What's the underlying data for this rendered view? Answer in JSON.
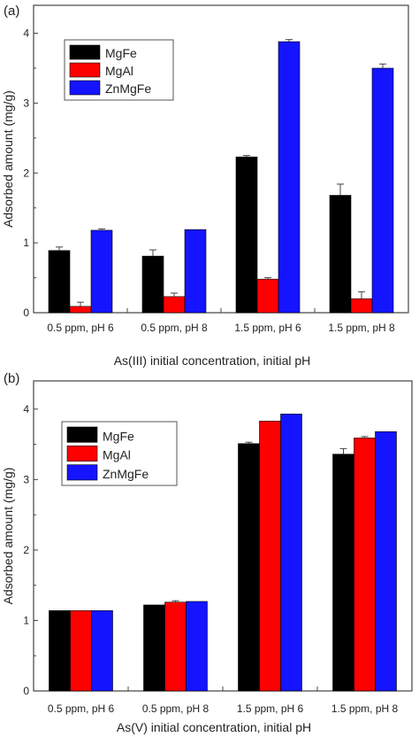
{
  "colors": {
    "MgFe": "#000000",
    "MgAl": "#ff0000",
    "ZnMgFe": "#1414ff",
    "axis": "#444444"
  },
  "chart_data": [
    {
      "panel_label": "(a)",
      "type": "bar",
      "categories": [
        "0.5 ppm, pH 6",
        "0.5 ppm, pH 8",
        "1.5 ppm, pH 6",
        "1.5 ppm, pH 8"
      ],
      "series": [
        {
          "name": "MgFe",
          "values": [
            0.89,
            0.81,
            2.23,
            1.68
          ],
          "errors": [
            0.05,
            0.09,
            0.02,
            0.16
          ]
        },
        {
          "name": "MgAl",
          "values": [
            0.09,
            0.23,
            0.48,
            0.2
          ],
          "errors": [
            0.06,
            0.05,
            0.02,
            0.1
          ]
        },
        {
          "name": "ZnMgFe",
          "values": [
            1.18,
            1.19,
            3.88,
            3.5
          ],
          "errors": [
            0.02,
            0.0,
            0.03,
            0.06
          ]
        }
      ],
      "xlabel": "As(III) initial concentration, initial pH",
      "ylabel": "Adsorbed amount (mg/g)",
      "ylim": [
        0,
        4.4
      ],
      "yticks": [
        0,
        1,
        2,
        3,
        4
      ],
      "legend": "top-left"
    },
    {
      "panel_label": "(b)",
      "type": "bar",
      "categories": [
        "0.5 ppm, pH 6",
        "0.5 ppm, pH 8",
        "1.5 ppm, pH 6",
        "1.5 ppm, pH 8"
      ],
      "series": [
        {
          "name": "MgFe",
          "values": [
            1.14,
            1.22,
            3.51,
            3.36
          ],
          "errors": [
            0.0,
            0.0,
            0.02,
            0.08
          ]
        },
        {
          "name": "MgAl",
          "values": [
            1.14,
            1.26,
            3.83,
            3.59
          ],
          "errors": [
            0.0,
            0.02,
            0.0,
            0.02
          ]
        },
        {
          "name": "ZnMgFe",
          "values": [
            1.14,
            1.27,
            3.93,
            3.68
          ],
          "errors": [
            0.0,
            0.0,
            0.0,
            0.0
          ]
        }
      ],
      "xlabel": "As(V) initial concentration, initial pH",
      "ylabel": "Adsorbed amount (mg/g)",
      "ylim": [
        0,
        4.4
      ],
      "yticks": [
        0,
        1,
        2,
        3,
        4
      ],
      "legend": "top-left"
    }
  ]
}
